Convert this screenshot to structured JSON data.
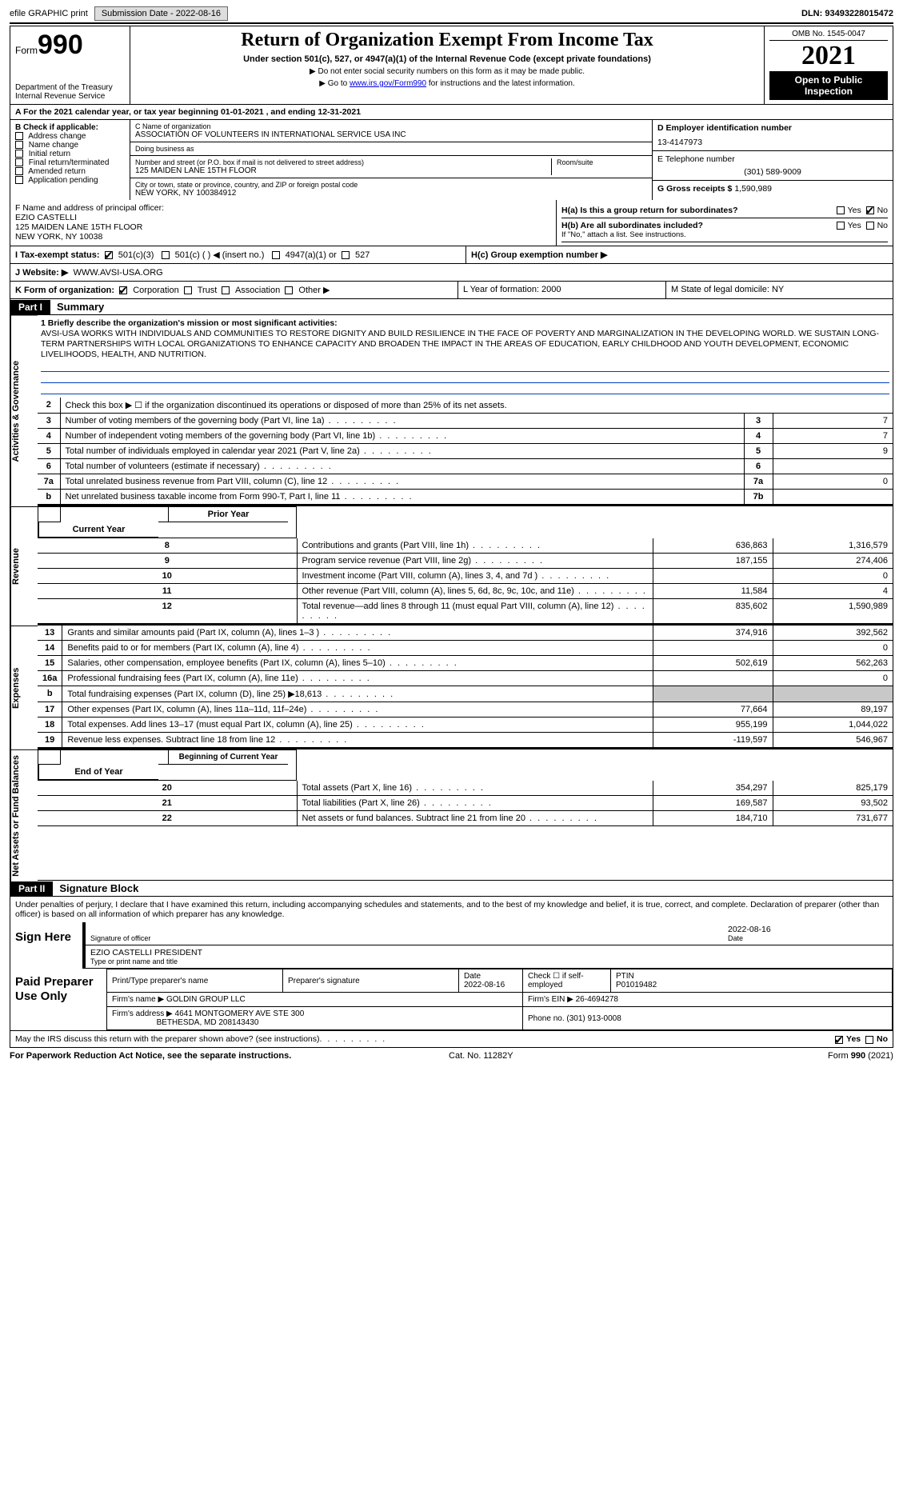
{
  "topstrip": {
    "efile_label": "efile GRAPHIC print",
    "submission_label": "Submission Date - 2022-08-16",
    "dln_label": "DLN: 93493228015472"
  },
  "header": {
    "form_label": "Form",
    "form_number": "990",
    "dept": "Department of the Treasury",
    "irs": "Internal Revenue Service",
    "title": "Return of Organization Exempt From Income Tax",
    "subtitle": "Under section 501(c), 527, or 4947(a)(1) of the Internal Revenue Code (except private foundations)",
    "note1": "▶ Do not enter social security numbers on this form as it may be made public.",
    "note2_pre": "▶ Go to ",
    "note2_link": "www.irs.gov/Form990",
    "note2_post": " for instructions and the latest information.",
    "omb": "OMB No. 1545-0047",
    "year": "2021",
    "open_public": "Open to Public Inspection"
  },
  "rowA": "For the 2021 calendar year, or tax year beginning 01-01-2021   , and ending 12-31-2021",
  "boxB": {
    "heading": "B Check if applicable:",
    "items": [
      "Address change",
      "Name change",
      "Initial return",
      "Final return/terminated",
      "Amended return",
      "Application pending"
    ]
  },
  "boxC": {
    "name_label": "C Name of organization",
    "name": "ASSOCIATION OF VOLUNTEERS IN INTERNATIONAL SERVICE USA INC",
    "dba_label": "Doing business as",
    "dba": "",
    "street_label": "Number and street (or P.O. box if mail is not delivered to street address)",
    "street": "125 MAIDEN LANE 15TH FLOOR",
    "room_label": "Room/suite",
    "city_label": "City or town, state or province, country, and ZIP or foreign postal code",
    "city": "NEW YORK, NY  100384912"
  },
  "boxD": {
    "ein_label": "D Employer identification number",
    "ein": "13-4147973",
    "phone_label": "E Telephone number",
    "phone": "(301) 589-9009",
    "gross_label": "G Gross receipts $",
    "gross": "1,590,989"
  },
  "boxF": {
    "label": "F  Name and address of principal officer:",
    "name": "EZIO CASTELLI",
    "addr1": "125 MAIDEN LANE 15TH FLOOR",
    "addr2": "NEW YORK, NY  10038"
  },
  "boxH": {
    "ha_label": "H(a)  Is this a group return for subordinates?",
    "hb_label": "H(b)  Are all subordinates included?",
    "hb_note": "If \"No,\" attach a list. See instructions.",
    "hc_label": "H(c)  Group exemption number ▶",
    "yes": "Yes",
    "no": "No"
  },
  "rowI": {
    "label": "I   Tax-exempt status:",
    "opts": [
      "501(c)(3)",
      "501(c) (  ) ◀ (insert no.)",
      "4947(a)(1) or",
      "527"
    ]
  },
  "rowJ": {
    "label": "J   Website: ▶",
    "value": "WWW.AVSI-USA.ORG"
  },
  "rowK": {
    "label": "K Form of organization:",
    "opts": [
      "Corporation",
      "Trust",
      "Association",
      "Other ▶"
    ],
    "L": "L Year of formation: 2000",
    "M": "M State of legal domicile: NY"
  },
  "partI": {
    "header": "Part I",
    "title": "Summary",
    "cat_ag": "Activities & Governance",
    "cat_rev": "Revenue",
    "cat_exp": "Expenses",
    "cat_na": "Net Assets or Fund Balances",
    "line1_label": "1  Briefly describe the organization's mission or most significant activities:",
    "mission": "AVSI-USA WORKS WITH INDIVIDUALS AND COMMUNITIES TO RESTORE DIGNITY AND BUILD RESILIENCE IN THE FACE OF POVERTY AND MARGINALIZATION IN THE DEVELOPING WORLD. WE SUSTAIN LONG-TERM PARTNERSHIPS WITH LOCAL ORGANIZATIONS TO ENHANCE CAPACITY AND BROADEN THE IMPACT IN THE AREAS OF EDUCATION, EARLY CHILDHOOD AND YOUTH DEVELOPMENT, ECONOMIC LIVELIHOODS, HEALTH, AND NUTRITION.",
    "line2": "Check this box ▶ ☐  if the organization discontinued its operations or disposed of more than 25% of its net assets.",
    "rows_ag": [
      {
        "n": "3",
        "lab": "Number of voting members of the governing body (Part VI, line 1a)",
        "box": "3",
        "v": "7"
      },
      {
        "n": "4",
        "lab": "Number of independent voting members of the governing body (Part VI, line 1b)",
        "box": "4",
        "v": "7"
      },
      {
        "n": "5",
        "lab": "Total number of individuals employed in calendar year 2021 (Part V, line 2a)",
        "box": "5",
        "v": "9"
      },
      {
        "n": "6",
        "lab": "Total number of volunteers (estimate if necessary)",
        "box": "6",
        "v": ""
      },
      {
        "n": "7a",
        "lab": "Total unrelated business revenue from Part VIII, column (C), line 12",
        "box": "7a",
        "v": "0"
      },
      {
        "n": "b",
        "lab": "Net unrelated business taxable income from Form 990-T, Part I, line 11",
        "box": "7b",
        "v": ""
      }
    ],
    "col_py": "Prior Year",
    "col_cy": "Current Year",
    "rows_rev": [
      {
        "n": "8",
        "lab": "Contributions and grants (Part VIII, line 1h)",
        "py": "636,863",
        "cy": "1,316,579"
      },
      {
        "n": "9",
        "lab": "Program service revenue (Part VIII, line 2g)",
        "py": "187,155",
        "cy": "274,406"
      },
      {
        "n": "10",
        "lab": "Investment income (Part VIII, column (A), lines 3, 4, and 7d )",
        "py": "",
        "cy": "0"
      },
      {
        "n": "11",
        "lab": "Other revenue (Part VIII, column (A), lines 5, 6d, 8c, 9c, 10c, and 11e)",
        "py": "11,584",
        "cy": "4"
      },
      {
        "n": "12",
        "lab": "Total revenue—add lines 8 through 11 (must equal Part VIII, column (A), line 12)",
        "py": "835,602",
        "cy": "1,590,989"
      }
    ],
    "rows_exp": [
      {
        "n": "13",
        "lab": "Grants and similar amounts paid (Part IX, column (A), lines 1–3 )",
        "py": "374,916",
        "cy": "392,562"
      },
      {
        "n": "14",
        "lab": "Benefits paid to or for members (Part IX, column (A), line 4)",
        "py": "",
        "cy": "0"
      },
      {
        "n": "15",
        "lab": "Salaries, other compensation, employee benefits (Part IX, column (A), lines 5–10)",
        "py": "502,619",
        "cy": "562,263"
      },
      {
        "n": "16a",
        "lab": "Professional fundraising fees (Part IX, column (A), line 11e)",
        "py": "",
        "cy": "0"
      },
      {
        "n": "b",
        "lab": "Total fundraising expenses (Part IX, column (D), line 25) ▶18,613",
        "py": "grey",
        "cy": "grey"
      },
      {
        "n": "17",
        "lab": "Other expenses (Part IX, column (A), lines 11a–11d, 11f–24e)",
        "py": "77,664",
        "cy": "89,197"
      },
      {
        "n": "18",
        "lab": "Total expenses. Add lines 13–17 (must equal Part IX, column (A), line 25)",
        "py": "955,199",
        "cy": "1,044,022"
      },
      {
        "n": "19",
        "lab": "Revenue less expenses. Subtract line 18 from line 12",
        "py": "-119,597",
        "cy": "546,967"
      }
    ],
    "col_by": "Beginning of Current Year",
    "col_ey": "End of Year",
    "rows_na": [
      {
        "n": "20",
        "lab": "Total assets (Part X, line 16)",
        "py": "354,297",
        "cy": "825,179"
      },
      {
        "n": "21",
        "lab": "Total liabilities (Part X, line 26)",
        "py": "169,587",
        "cy": "93,502"
      },
      {
        "n": "22",
        "lab": "Net assets or fund balances. Subtract line 21 from line 20",
        "py": "184,710",
        "cy": "731,677"
      }
    ]
  },
  "partII": {
    "header": "Part II",
    "title": "Signature Block",
    "decl": "Under penalties of perjury, I declare that I have examined this return, including accompanying schedules and statements, and to the best of my knowledge and belief, it is true, correct, and complete. Declaration of preparer (other than officer) is based on all information of which preparer has any knowledge.",
    "sign_here": "Sign Here",
    "sig_officer": "Signature of officer",
    "sig_date": "2022-08-16",
    "officer_name": "EZIO CASTELLI  PRESIDENT",
    "type_name": "Type or print name and title",
    "date_label": "Date",
    "paid_prep": "Paid Preparer Use Only",
    "pp_name_label": "Print/Type preparer's name",
    "pp_sig_label": "Preparer's signature",
    "pp_date": "2022-08-16",
    "pp_check": "Check ☐ if self-employed",
    "pp_ptin_label": "PTIN",
    "pp_ptin": "P01019482",
    "firm_name_label": "Firm's name    ▶",
    "firm_name": "GOLDIN GROUP LLC",
    "firm_ein_label": "Firm's EIN ▶",
    "firm_ein": "26-4694278",
    "firm_addr_label": "Firm's address ▶",
    "firm_addr": "4641 MONTGOMERY AVE STE 300",
    "firm_addr2": "BETHESDA, MD  208143430",
    "firm_phone_label": "Phone no.",
    "firm_phone": "(301) 913-0008",
    "may_discuss": "May the IRS discuss this return with the preparer shown above? (see instructions)",
    "yes": "Yes",
    "no": "No"
  },
  "footer": {
    "left": "For Paperwork Reduction Act Notice, see the separate instructions.",
    "mid": "Cat. No. 11282Y",
    "right": "Form 990 (2021)"
  }
}
